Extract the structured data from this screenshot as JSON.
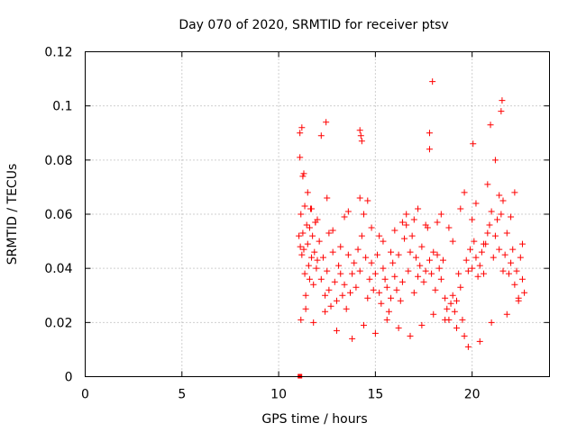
{
  "chart_data": {
    "type": "scatter",
    "title": "Day 070 of 2020, SRMTID for receiver ptsv",
    "xlabel": "GPS time / hours",
    "ylabel": "SRMTID / TECUs",
    "xlim": [
      0,
      24
    ],
    "ylim": [
      0,
      0.12
    ],
    "x_ticks": [
      "0",
      "5",
      "10",
      "15",
      "20"
    ],
    "y_ticks": [
      "0",
      "0.02",
      "0.04",
      "0.06",
      "0.08",
      "0.1",
      "0.12"
    ],
    "grid": true,
    "marker": "plus",
    "color": "#ff0000",
    "series": [
      {
        "x": [
          11.05,
          11.1,
          11.15,
          11.2,
          11.25,
          11.3,
          11.35,
          11.4,
          11.45,
          11.5,
          11.55,
          11.6,
          11.65,
          11.7,
          11.75,
          11.8,
          11.85,
          11.9,
          11.95,
          12.0,
          12.1,
          12.2,
          12.3,
          12.4,
          12.5,
          12.6,
          12.7,
          12.8,
          12.9,
          13.0,
          13.1,
          13.2,
          13.3,
          13.4,
          13.5,
          13.6,
          13.7,
          13.8,
          13.9,
          14.0,
          14.1,
          14.2,
          14.3,
          14.4,
          14.5,
          14.6,
          14.7,
          14.8,
          14.9,
          15.0,
          15.1,
          15.2,
          15.3,
          15.4,
          15.5,
          15.6,
          15.7,
          15.8,
          15.9,
          16.0,
          16.1,
          16.2,
          16.3,
          16.4,
          16.5,
          16.6,
          16.7,
          16.8,
          16.9,
          17.0,
          17.1,
          17.2,
          17.3,
          17.4,
          17.5,
          17.6,
          17.7,
          17.8,
          17.9,
          18.0,
          18.1,
          18.2,
          18.3,
          18.4,
          18.5,
          18.6,
          18.7,
          18.8,
          18.9,
          19.0,
          19.1,
          19.2,
          19.3,
          19.4,
          19.5,
          19.6,
          19.7,
          19.8,
          19.9,
          20.0,
          20.1,
          20.2,
          20.3,
          20.4,
          20.5,
          20.6,
          20.7,
          20.8,
          20.9,
          21.0,
          21.1,
          21.2,
          21.3,
          21.4,
          21.5,
          21.6,
          21.7,
          21.8,
          21.9,
          22.0,
          22.1,
          22.2,
          22.3,
          22.4,
          22.5,
          22.6,
          22.7,
          11.2,
          11.3,
          11.5,
          11.7,
          11.9,
          12.2,
          12.5,
          12.8,
          13.2,
          13.6,
          14.2,
          14.6,
          15.2,
          15.8,
          16.4,
          17.2,
          17.8,
          18.4,
          19.0,
          19.6,
          20.2,
          20.8,
          21.2,
          21.6,
          22.2,
          22.6,
          11.15,
          11.4,
          11.8,
          12.4,
          13.0,
          13.8,
          14.4,
          15.0,
          15.6,
          16.2,
          16.8,
          17.4,
          18.0,
          18.6,
          19.2,
          19.8,
          20.4,
          21.0,
          21.8,
          22.4,
          11.1,
          11.35,
          11.6,
          12.0,
          12.6,
          13.4,
          14.2,
          14.8,
          15.4,
          16.0,
          16.6,
          17.0,
          17.6,
          18.2,
          18.8,
          19.4,
          20.0,
          20.6,
          21.4,
          22.0,
          11.12,
          11.25,
          14.3,
          17.95,
          21.55,
          21.5,
          20.05,
          20.95,
          12.45,
          14.25,
          17.8
        ],
        "y": [
          0.052,
          0.081,
          0.06,
          0.045,
          0.053,
          0.047,
          0.038,
          0.03,
          0.056,
          0.049,
          0.041,
          0.036,
          0.062,
          0.044,
          0.052,
          0.034,
          0.046,
          0.057,
          0.04,
          0.043,
          0.05,
          0.036,
          0.044,
          0.03,
          0.039,
          0.032,
          0.026,
          0.046,
          0.035,
          0.028,
          0.041,
          0.038,
          0.03,
          0.034,
          0.025,
          0.045,
          0.031,
          0.038,
          0.042,
          0.033,
          0.047,
          0.039,
          0.052,
          0.06,
          0.044,
          0.029,
          0.036,
          0.042,
          0.032,
          0.038,
          0.045,
          0.031,
          0.027,
          0.04,
          0.036,
          0.033,
          0.024,
          0.029,
          0.042,
          0.037,
          0.032,
          0.045,
          0.028,
          0.035,
          0.051,
          0.056,
          0.039,
          0.046,
          0.052,
          0.031,
          0.044,
          0.037,
          0.041,
          0.048,
          0.035,
          0.039,
          0.055,
          0.043,
          0.038,
          0.046,
          0.032,
          0.045,
          0.04,
          0.036,
          0.043,
          0.029,
          0.025,
          0.021,
          0.027,
          0.03,
          0.024,
          0.028,
          0.038,
          0.033,
          0.021,
          0.015,
          0.043,
          0.039,
          0.047,
          0.04,
          0.05,
          0.044,
          0.037,
          0.041,
          0.046,
          0.038,
          0.049,
          0.053,
          0.056,
          0.061,
          0.044,
          0.052,
          0.058,
          0.047,
          0.06,
          0.039,
          0.045,
          0.053,
          0.038,
          0.042,
          0.047,
          0.034,
          0.039,
          0.029,
          0.044,
          0.036,
          0.031,
          0.092,
          0.075,
          0.068,
          0.062,
          0.057,
          0.089,
          0.066,
          0.054,
          0.048,
          0.061,
          0.091,
          0.065,
          0.052,
          0.046,
          0.057,
          0.062,
          0.084,
          0.06,
          0.05,
          0.068,
          0.064,
          0.071,
          0.08,
          0.065,
          0.068,
          0.049,
          0.021,
          0.025,
          0.02,
          0.024,
          0.017,
          0.014,
          0.019,
          0.016,
          0.021,
          0.018,
          0.015,
          0.019,
          0.023,
          0.021,
          0.018,
          0.011,
          0.013,
          0.02,
          0.023,
          0.028,
          0.09,
          0.063,
          0.055,
          0.058,
          0.053,
          0.059,
          0.066,
          0.055,
          0.05,
          0.054,
          0.06,
          0.058,
          0.056,
          0.057,
          0.055,
          0.062,
          0.058,
          0.049,
          0.067,
          0.059,
          0.048,
          0.074,
          0.087,
          0.109,
          0.102,
          0.098,
          0.086,
          0.093,
          0.094,
          0.089,
          0.09
        ],
        "extra_points": [
          [
            11.1,
            0.0
          ]
        ]
      }
    ]
  }
}
